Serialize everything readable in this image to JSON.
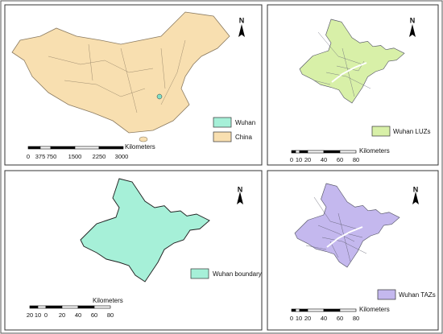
{
  "panels": [
    {
      "north": "N",
      "legend": [
        "Wuhan",
        "China"
      ],
      "scale": {
        "unit": "Kilometers",
        "labels": [
          0,
          375,
          750,
          1500,
          2250,
          3000
        ]
      }
    },
    {
      "north": "N",
      "legend": [
        "Wuhan LUZs"
      ],
      "scale": {
        "unit": "Kilometers",
        "labels": [
          0,
          10,
          20,
          40,
          60,
          80
        ]
      }
    },
    {
      "north": "N",
      "legend": [
        "Wuhan boundary"
      ],
      "scale": {
        "unit": "Kilometers",
        "labels": [
          20,
          10,
          0,
          20,
          40,
          60,
          80
        ]
      }
    },
    {
      "north": "N",
      "legend": [
        "Wuhan TAZs"
      ],
      "scale": {
        "unit": "Kilometers",
        "labels": [
          0,
          10,
          20,
          40,
          60,
          80
        ]
      }
    }
  ]
}
